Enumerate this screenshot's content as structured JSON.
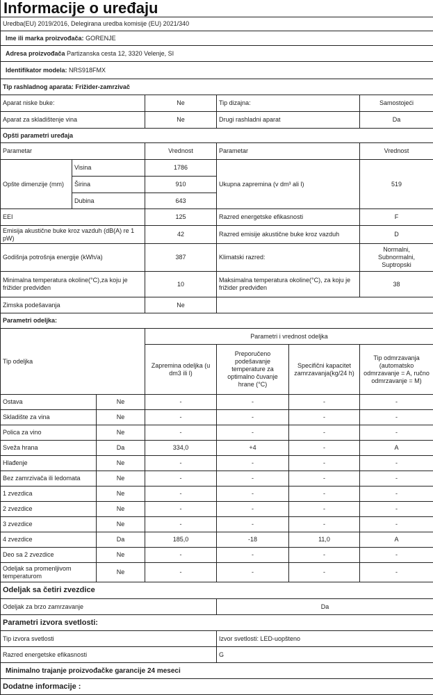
{
  "title": "Informacije o uređaju",
  "regulation": "Uredba(EU) 2019/2016, Delegirana uredba komisije (EU) 2021/340",
  "manufacturer": {
    "label": "Ime ili marka proizvođača:",
    "value": "GORENJE"
  },
  "address": {
    "label": "Adresa proizvođača",
    "value": "Partizanska cesta 12, 3320 Velenje, SI"
  },
  "model": {
    "label": "Identifikator modela:",
    "value": "NRS918FMX"
  },
  "appliance_type": "Tip rashladnog aparata: Frižider-zamrzivač",
  "basic": {
    "low_noise": {
      "label": "Aparat niske buke:",
      "value": "Ne"
    },
    "design": {
      "label": "Tip dizajna:",
      "value": "Samostojeći"
    },
    "wine": {
      "label": "Aparat za skladištenje vina",
      "value": "Ne"
    },
    "other": {
      "label": "Drugi rashladni aparat",
      "value": "Da"
    }
  },
  "general": {
    "heading": "Opšti parametri uređaja",
    "col_param": "Parametar",
    "col_value": "Vrednost",
    "dimensions_label": "Opšte dimenzije (mm)",
    "height": {
      "label": "Visina",
      "value": "1786"
    },
    "width": {
      "label": "Širina",
      "value": "910"
    },
    "depth": {
      "label": "Dubina",
      "value": "643"
    },
    "total_volume": {
      "label": "Ukupna zapremina (v dm³ ali l)",
      "value": "519"
    },
    "eei": {
      "label": "EEI",
      "value": "125"
    },
    "energy_class": {
      "label": "Razred energetske efikasnosti",
      "value": "F"
    },
    "noise": {
      "label": "Emisija akustične buke kroz vazduh (dB(A) re 1 pW)",
      "value": "42"
    },
    "noise_class": {
      "label": "Razred emisije akustične buke kroz vazduh",
      "value": "D"
    },
    "annual_energy": {
      "label": "Godišnja potrošnja energije (kWh/a)",
      "value": "387"
    },
    "climate": {
      "label": "Klimatski  razred:",
      "value": "Normalni, Subnormalni, Suptropski"
    },
    "min_temp": {
      "label": "Minimalna temperatura okoline(°C),za koju je frižider predviđen",
      "value": "10"
    },
    "max_temp": {
      "label": "Maksimalna temperatura okoline(°C), za koju je frižider predviđen",
      "value": "38"
    },
    "winter": {
      "label": "Zimska podešavanja",
      "value": "Ne"
    }
  },
  "compartments": {
    "heading": "Parametri odeljka:",
    "group_header": "Parametri i vrednost odeljka",
    "col_type": "Tip odeljka",
    "col_volume": "Zapremina odeljka (u dm3 ili l)",
    "col_temp": "Preporučeno podešavanje temperature za optimalno čuvanje hrane (°C)",
    "col_capacity": "Specifični kapacitet zamrzavanja(kg/24 h)",
    "col_defrost": "Tip odmrzavanja (automatsko odmrzavanje = A, ručno odmrzavanje = M)",
    "rows": [
      {
        "name": "Ostava",
        "present": "Ne",
        "volume": "-",
        "temp": "-",
        "capacity": "-",
        "defrost": "-"
      },
      {
        "name": "Skladište za vina",
        "present": "Ne",
        "volume": "-",
        "temp": "-",
        "capacity": "-",
        "defrost": "-"
      },
      {
        "name": "Polica za vino",
        "present": "Ne",
        "volume": "-",
        "temp": "-",
        "capacity": "-",
        "defrost": "-"
      },
      {
        "name": "Sveža  hrana",
        "present": "Da",
        "volume": "334,0",
        "temp": "+4",
        "capacity": "-",
        "defrost": "A"
      },
      {
        "name": "Hlađenje",
        "present": "Ne",
        "volume": "-",
        "temp": "-",
        "capacity": "-",
        "defrost": "-"
      },
      {
        "name": "Bez zamrzivača ili ledomata",
        "present": "Ne",
        "volume": "-",
        "temp": "-",
        "capacity": "-",
        "defrost": "-"
      },
      {
        "name": "1 zvezdica",
        "present": "Ne",
        "volume": "-",
        "temp": "-",
        "capacity": "-",
        "defrost": "-"
      },
      {
        "name": "2 zvezdice",
        "present": "Ne",
        "volume": "-",
        "temp": "-",
        "capacity": "-",
        "defrost": "-"
      },
      {
        "name": "3 zvezdice",
        "present": "Ne",
        "volume": "-",
        "temp": "-",
        "capacity": "-",
        "defrost": "-"
      },
      {
        "name": "4 zvezdice",
        "present": "Da",
        "volume": "185,0",
        "temp": "-18",
        "capacity": "11,0",
        "defrost": "A"
      },
      {
        "name": "Deo sa 2 zvezdice",
        "present": "Ne",
        "volume": "-",
        "temp": "-",
        "capacity": "-",
        "defrost": "-"
      },
      {
        "name": "Odeljak sa promenljivom temperaturom",
        "present": "Ne",
        "volume": "-",
        "temp": "-",
        "capacity": "-",
        "defrost": "-"
      }
    ]
  },
  "four_star": {
    "heading": "Odeljak sa četiri zvezdice",
    "fast_freeze": {
      "label": "Odeljak za brzo zamrzavanje",
      "value": "Da"
    }
  },
  "light": {
    "heading": "Parametri izvora svetlosti:",
    "type": {
      "label": "Tip izvora svetlosti",
      "value": "Izvor svetlosti: LED-uopšteno"
    },
    "class": {
      "label": "Razred energetske efikasnosti",
      "value": "G"
    }
  },
  "warranty": "Minimalno trajanje proizvođačke garancije  24 meseci",
  "additional": "Dodatne informacije :"
}
